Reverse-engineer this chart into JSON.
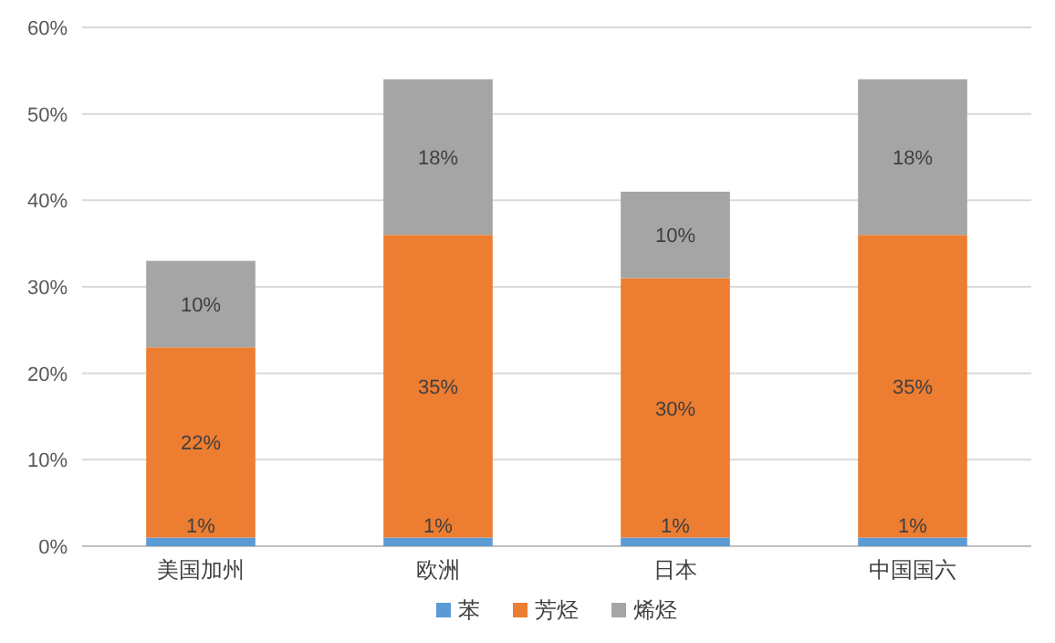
{
  "chart_data": {
    "type": "bar",
    "stacked": true,
    "categories": [
      "美国加州",
      "欧洲",
      "日本",
      "中国国六"
    ],
    "series": [
      {
        "name": "苯",
        "color": "#5b9bd5",
        "values": [
          1,
          1,
          1,
          1
        ],
        "value_labels": [
          "1%",
          "1%",
          "1%",
          "1%"
        ]
      },
      {
        "name": "芳烃",
        "color": "#ed7d31",
        "values": [
          22,
          35,
          30,
          35
        ],
        "value_labels": [
          "22%",
          "35%",
          "30%",
          "35%"
        ]
      },
      {
        "name": "烯烃",
        "color": "#a5a5a5",
        "values": [
          10,
          18,
          10,
          18
        ],
        "value_labels": [
          "10%",
          "18%",
          "10%",
          "18%"
        ]
      }
    ],
    "ylim": [
      0,
      60
    ],
    "yticks": [
      {
        "value": 0,
        "label": "0%"
      },
      {
        "value": 10,
        "label": "10%"
      },
      {
        "value": 20,
        "label": "20%"
      },
      {
        "value": 30,
        "label": "30%"
      },
      {
        "value": 40,
        "label": "40%"
      },
      {
        "value": 50,
        "label": "50%"
      },
      {
        "value": 60,
        "label": "60%"
      }
    ],
    "grid": "y",
    "legend": "bottom"
  }
}
